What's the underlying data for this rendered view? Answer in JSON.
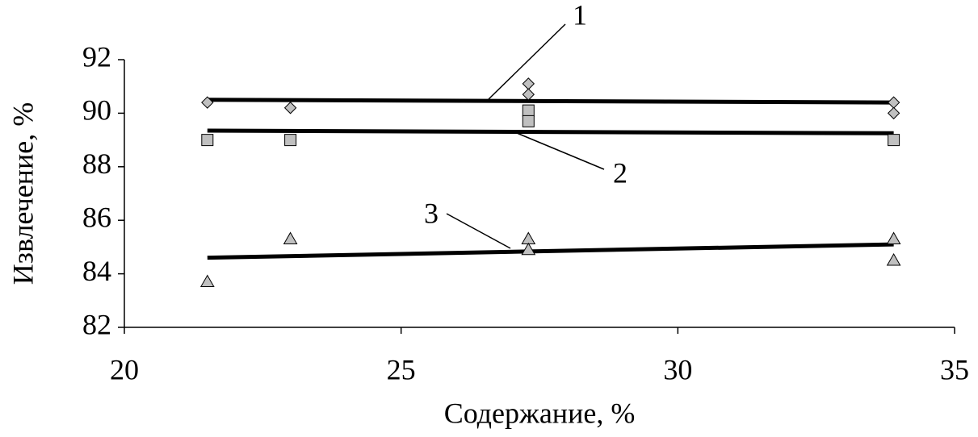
{
  "chart_data": {
    "type": "scatter",
    "xlabel": "Содержание, %",
    "ylabel": "Извлечение, %",
    "xlim": [
      20,
      35
    ],
    "xticks": [
      20,
      25,
      30,
      35
    ],
    "ylim": [
      82,
      92
    ],
    "yticks": [
      82,
      84,
      86,
      88,
      90,
      92
    ],
    "series": [
      {
        "name": "1",
        "marker": "diamond",
        "color": "#c0c0c0",
        "line_color": "#000000",
        "x": [
          21.5,
          23.0,
          27.3,
          27.3,
          33.9,
          33.9
        ],
        "values": [
          90.4,
          90.2,
          91.1,
          90.7,
          90.4,
          90.0
        ],
        "trend_x": [
          21.5,
          33.9
        ],
        "trend": [
          90.5,
          90.4
        ]
      },
      {
        "name": "2",
        "marker": "square",
        "color": "#c0c0c0",
        "line_color": "#000000",
        "x": [
          21.5,
          23.0,
          27.3,
          27.3,
          33.9
        ],
        "values": [
          89.0,
          89.0,
          90.1,
          89.7,
          89.0
        ],
        "trend_x": [
          21.5,
          33.9
        ],
        "trend": [
          89.35,
          89.25
        ]
      },
      {
        "name": "3",
        "marker": "triangle",
        "color": "#c0c0c0",
        "line_color": "#000000",
        "x": [
          21.5,
          23.0,
          27.3,
          27.3,
          33.9,
          33.9
        ],
        "values": [
          83.7,
          85.3,
          85.3,
          84.9,
          85.3,
          84.5
        ],
        "trend_x": [
          21.5,
          33.9
        ],
        "trend": [
          84.6,
          85.1
        ]
      }
    ]
  }
}
